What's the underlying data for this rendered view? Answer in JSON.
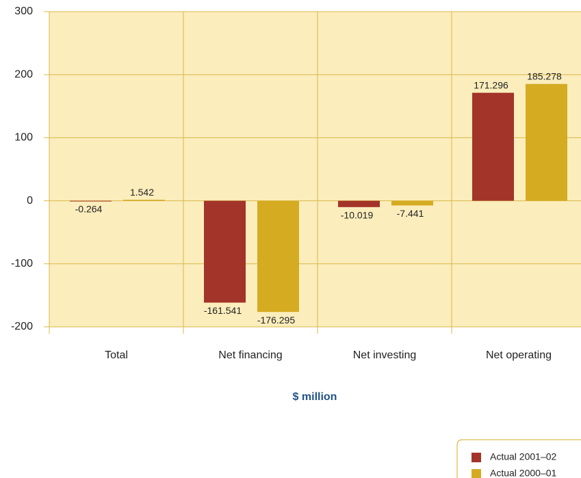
{
  "chart_data": {
    "type": "bar",
    "categories": [
      "Total",
      "Net financing",
      "Net investing",
      "Net operating"
    ],
    "series": [
      {
        "name": "Actual 2001–02",
        "color": "#a3342a",
        "values": [
          -0.264,
          -161.541,
          -10.019,
          171.296
        ]
      },
      {
        "name": "Actual 2000–01",
        "color": "#d5ab22",
        "values": [
          1.542,
          -176.295,
          -7.441,
          185.278
        ]
      }
    ],
    "xlabel": "$ million",
    "ylim": [
      -200,
      300
    ],
    "yticks": [
      -200,
      -100,
      0,
      100,
      200,
      300
    ],
    "grid": true,
    "legend": "bottom-right"
  }
}
